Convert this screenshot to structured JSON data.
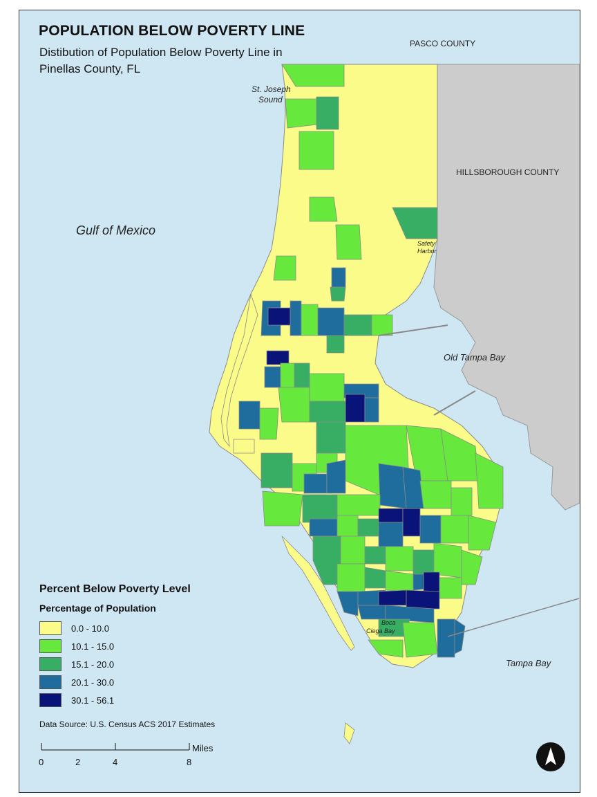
{
  "header": {
    "title": "POPULATION BELOW POVERTY LINE",
    "subtitle_line1": "Distibution of Population Below Poverty Line in",
    "subtitle_line2": "Pinellas County, FL"
  },
  "labels": {
    "pasco": "PASCO COUNTY",
    "hillsborough": "HILLSBOROUGH COUNTY",
    "gulf": "Gulf of Mexico",
    "old_tampa_bay": "Old Tampa Bay",
    "tampa_bay": "Tampa Bay",
    "st_joseph_1": "St. Joseph",
    "st_joseph_2": "Sound",
    "safety_harbor_1": "Safety",
    "safety_harbor_2": "Harbor",
    "boca_1": "Boca",
    "boca_2": "Ciega Bay"
  },
  "legend": {
    "title": "Percent Below Poverty Level",
    "subtitle": "Percentage of Population",
    "classes": [
      {
        "label": "0.0 - 10.0",
        "color": "#fbfb8a"
      },
      {
        "label": "10.1 - 15.0",
        "color": "#66e83c"
      },
      {
        "label": "15.1 - 20.0",
        "color": "#37ae63"
      },
      {
        "label": "20.1 - 30.0",
        "color": "#1f6d9c"
      },
      {
        "label": "30.1 - 56.1",
        "color": "#0a1478"
      }
    ]
  },
  "source": "Data Source:  U.S. Census ACS 2017 Estimates",
  "scale": {
    "ticks": [
      "0",
      "2",
      "4",
      "8"
    ],
    "unit": "Miles"
  },
  "colors": {
    "water": "#cfe7f3",
    "land_other_county": "#cccccc",
    "tract_border": "#8a8a8a"
  },
  "north_arrow": "north-arrow-icon"
}
